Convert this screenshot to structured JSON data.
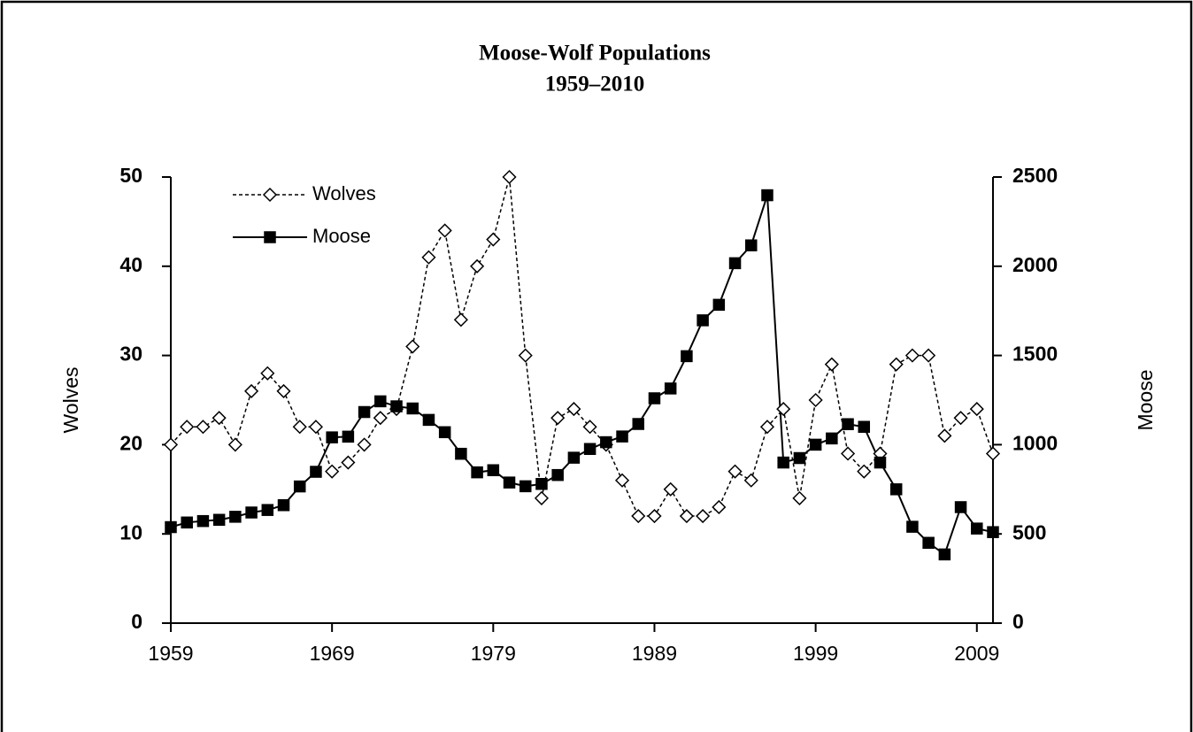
{
  "chart_data": {
    "type": "line",
    "title": "Moose-Wolf Populations",
    "subtitle": "1959–2010",
    "y_label": "Wolves",
    "y2_label": "Moose",
    "x": [
      1959,
      1960,
      1961,
      1962,
      1963,
      1964,
      1965,
      1966,
      1967,
      1968,
      1969,
      1970,
      1971,
      1972,
      1973,
      1974,
      1975,
      1976,
      1977,
      1978,
      1979,
      1980,
      1981,
      1982,
      1983,
      1984,
      1985,
      1986,
      1987,
      1988,
      1989,
      1990,
      1991,
      1992,
      1993,
      1994,
      1995,
      1996,
      1997,
      1998,
      1999,
      2000,
      2001,
      2002,
      2003,
      2004,
      2005,
      2006,
      2007,
      2008,
      2009,
      2010
    ],
    "series": [
      {
        "name": "Wolves",
        "color": "#000000",
        "line_style": "dashed",
        "marker": "diamond",
        "axis": "y",
        "values": [
          20,
          22,
          22,
          23,
          20,
          26,
          28,
          26,
          22,
          22,
          17,
          18,
          20,
          23,
          24,
          31,
          41,
          44,
          34,
          40,
          43,
          50,
          30,
          14,
          23,
          24,
          22,
          20,
          16,
          12,
          12,
          15,
          12,
          12,
          13,
          17,
          16,
          22,
          24,
          14,
          25,
          29,
          19,
          17,
          19,
          29,
          30,
          30,
          21,
          23,
          24,
          19
        ]
      },
      {
        "name": "Moose",
        "color": "#000000",
        "line_style": "solid",
        "marker": "square",
        "axis": "y2",
        "values": [
          538,
          564,
          572,
          579,
          596,
          620,
          634,
          661,
          766,
          848,
          1041,
          1045,
          1183,
          1243,
          1215,
          1203,
          1139,
          1070,
          949,
          845,
          857,
          788,
          767,
          780,
          830,
          927,
          976,
          1014,
          1046,
          1116,
          1260,
          1315,
          1496,
          1697,
          1784,
          2017,
          2117,
          2398,
          900,
          925,
          1000,
          1035,
          1115,
          1100,
          900,
          750,
          540,
          450,
          385,
          650,
          530,
          510
        ]
      }
    ],
    "xlim": [
      1959,
      2010
    ],
    "xticks": [
      1959,
      1969,
      1979,
      1989,
      1999,
      2009
    ],
    "ylim": [
      0,
      50
    ],
    "yticks": [
      0,
      10,
      20,
      30,
      40,
      50
    ],
    "y2lim": [
      0,
      2500
    ],
    "y2ticks": [
      0,
      500,
      1000,
      1500,
      2000,
      2500
    ],
    "legend": "upper left"
  }
}
